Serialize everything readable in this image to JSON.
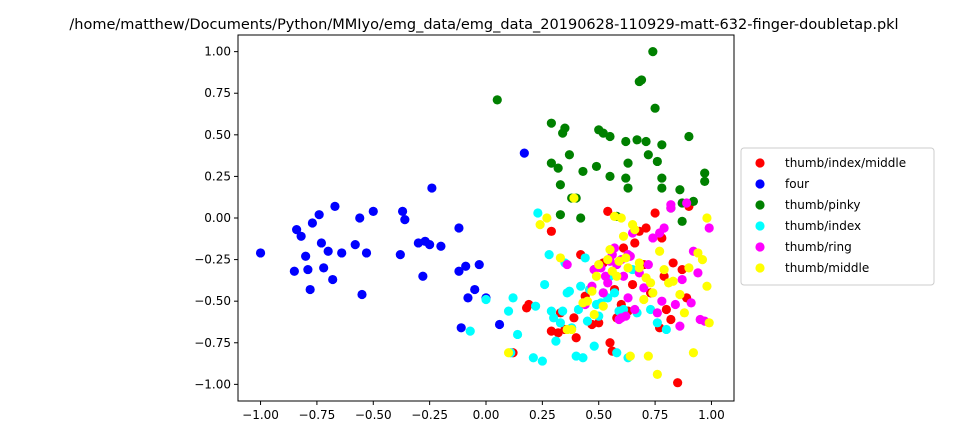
{
  "chart_data": {
    "type": "scatter",
    "title": "/home/matthew/Documents/Python/MMIyo/emg_data/emg_data_20190628-110929-matt-632-finger-doubletap.pkl",
    "xlabel": "",
    "ylabel": "",
    "xlim": [
      -1.1,
      1.1
    ],
    "ylim": [
      -1.1,
      1.1
    ],
    "xticks": [
      -1.0,
      -0.75,
      -0.5,
      -0.25,
      0.0,
      0.25,
      0.5,
      0.75,
      1.0
    ],
    "yticks": [
      -1.0,
      -0.75,
      -0.5,
      -0.25,
      0.0,
      0.25,
      0.5,
      0.75,
      1.0
    ],
    "xtick_labels": [
      "−1.00",
      "−0.75",
      "−0.50",
      "−0.25",
      "0.00",
      "0.25",
      "0.50",
      "0.75",
      "1.00"
    ],
    "ytick_labels": [
      "−1.00",
      "−0.75",
      "−0.50",
      "−0.25",
      "0.00",
      "0.25",
      "0.50",
      "0.75",
      "1.00"
    ],
    "grid": false,
    "legend_position": "outside-right",
    "series": [
      {
        "name": "thumb/index/middle",
        "color": "#ff0000",
        "points": [
          [
            0.12,
            -0.81
          ],
          [
            0.19,
            -0.52
          ],
          [
            0.18,
            -0.54
          ],
          [
            0.29,
            -0.08
          ],
          [
            0.33,
            -0.57
          ],
          [
            0.35,
            -0.67
          ],
          [
            0.29,
            -0.68
          ],
          [
            0.32,
            -0.69
          ],
          [
            0.39,
            -0.6
          ],
          [
            0.4,
            -0.72
          ],
          [
            0.42,
            -0.22
          ],
          [
            0.44,
            -0.47
          ],
          [
            0.46,
            -0.43
          ],
          [
            0.48,
            -0.31
          ],
          [
            0.5,
            -0.63
          ],
          [
            0.52,
            -0.27
          ],
          [
            0.54,
            0.04
          ],
          [
            0.55,
            -0.75
          ],
          [
            0.57,
            -0.43
          ],
          [
            0.58,
            -0.6
          ],
          [
            0.6,
            -0.52
          ],
          [
            0.61,
            -0.18
          ],
          [
            0.63,
            -0.56
          ],
          [
            0.65,
            -0.4
          ],
          [
            0.66,
            -0.15
          ],
          [
            0.68,
            -0.08
          ],
          [
            0.7,
            -0.28
          ],
          [
            0.71,
            -0.06
          ],
          [
            0.73,
            -0.45
          ],
          [
            0.75,
            0.03
          ],
          [
            0.77,
            -0.66
          ],
          [
            0.78,
            -0.12
          ],
          [
            0.79,
            -0.35
          ],
          [
            0.8,
            -0.55
          ],
          [
            0.82,
            -0.61
          ],
          [
            0.83,
            -0.27
          ],
          [
            0.85,
            -0.99
          ],
          [
            0.87,
            -0.31
          ],
          [
            0.89,
            -0.48
          ],
          [
            0.9,
            0.07
          ],
          [
            0.56,
            -0.8
          ],
          [
            0.47,
            -0.64
          ]
        ]
      },
      {
        "name": "four",
        "color": "#0000ff",
        "points": [
          [
            -1.0,
            -0.21
          ],
          [
            -0.85,
            -0.32
          ],
          [
            -0.84,
            -0.07
          ],
          [
            -0.82,
            -0.11
          ],
          [
            -0.8,
            -0.23
          ],
          [
            -0.79,
            -0.31
          ],
          [
            -0.78,
            -0.43
          ],
          [
            -0.77,
            -0.03
          ],
          [
            -0.74,
            0.02
          ],
          [
            -0.73,
            -0.15
          ],
          [
            -0.72,
            -0.3
          ],
          [
            -0.7,
            -0.2
          ],
          [
            -0.68,
            -0.37
          ],
          [
            -0.67,
            0.07
          ],
          [
            -0.64,
            -0.21
          ],
          [
            -0.58,
            -0.16
          ],
          [
            -0.56,
            0.0
          ],
          [
            -0.55,
            -0.46
          ],
          [
            -0.53,
            -0.21
          ],
          [
            -0.5,
            0.04
          ],
          [
            -0.38,
            -0.22
          ],
          [
            -0.37,
            0.04
          ],
          [
            -0.36,
            -0.01
          ],
          [
            -0.3,
            -0.15
          ],
          [
            -0.28,
            -0.35
          ],
          [
            -0.27,
            -0.14
          ],
          [
            -0.25,
            -0.16
          ],
          [
            -0.24,
            0.18
          ],
          [
            -0.12,
            -0.06
          ],
          [
            -0.12,
            -0.32
          ],
          [
            -0.09,
            -0.29
          ],
          [
            -0.08,
            -0.48
          ],
          [
            -0.05,
            -0.43
          ],
          [
            -0.03,
            -0.28
          ],
          [
            0.0,
            -0.48
          ],
          [
            0.06,
            -0.64
          ],
          [
            0.17,
            0.39
          ],
          [
            -0.11,
            -0.66
          ],
          [
            -0.2,
            -0.17
          ]
        ]
      },
      {
        "name": "thumb/pinky",
        "color": "#008000",
        "points": [
          [
            0.05,
            0.71
          ],
          [
            0.29,
            0.57
          ],
          [
            0.29,
            0.33
          ],
          [
            0.32,
            0.3
          ],
          [
            0.33,
            0.2
          ],
          [
            0.33,
            0.02
          ],
          [
            0.34,
            0.51
          ],
          [
            0.35,
            0.54
          ],
          [
            0.37,
            0.38
          ],
          [
            0.38,
            0.12
          ],
          [
            0.4,
            0.12
          ],
          [
            0.43,
            0.28
          ],
          [
            0.42,
            0.0
          ],
          [
            0.49,
            0.31
          ],
          [
            0.5,
            0.53
          ],
          [
            0.52,
            0.51
          ],
          [
            0.55,
            0.25
          ],
          [
            0.55,
            0.49
          ],
          [
            0.58,
            0.01
          ],
          [
            0.62,
            0.24
          ],
          [
            0.62,
            0.46
          ],
          [
            0.63,
            0.33
          ],
          [
            0.63,
            0.18
          ],
          [
            0.67,
            0.47
          ],
          [
            0.68,
            0.82
          ],
          [
            0.69,
            0.83
          ],
          [
            0.71,
            0.46
          ],
          [
            0.72,
            0.38
          ],
          [
            0.74,
            1.0
          ],
          [
            0.75,
            0.66
          ],
          [
            0.76,
            0.34
          ],
          [
            0.78,
            0.44
          ],
          [
            0.78,
            0.24
          ],
          [
            0.78,
            0.18
          ],
          [
            0.82,
            0.06
          ],
          [
            0.86,
            0.17
          ],
          [
            0.87,
            -0.02
          ],
          [
            0.9,
            0.49
          ],
          [
            0.92,
            0.1
          ],
          [
            0.97,
            0.27
          ],
          [
            0.97,
            0.22
          ],
          [
            0.87,
            0.09
          ]
        ]
      },
      {
        "name": "thumb/index",
        "color": "#00ffff",
        "points": [
          [
            -0.07,
            -0.68
          ],
          [
            0.0,
            -0.49
          ],
          [
            0.11,
            -0.81
          ],
          [
            0.12,
            -0.48
          ],
          [
            0.14,
            -0.7
          ],
          [
            0.1,
            -0.56
          ],
          [
            0.21,
            -0.84
          ],
          [
            0.22,
            -0.53
          ],
          [
            0.23,
            0.03
          ],
          [
            0.25,
            -0.86
          ],
          [
            0.26,
            -0.4
          ],
          [
            0.28,
            -0.22
          ],
          [
            0.29,
            -0.56
          ],
          [
            0.31,
            -0.74
          ],
          [
            0.3,
            -0.6
          ],
          [
            0.33,
            -0.63
          ],
          [
            0.34,
            -0.56
          ],
          [
            0.35,
            -0.27
          ],
          [
            0.37,
            -0.44
          ],
          [
            0.38,
            -0.66
          ],
          [
            0.4,
            -0.83
          ],
          [
            0.41,
            -0.55
          ],
          [
            0.42,
            -0.41
          ],
          [
            0.43,
            -0.84
          ],
          [
            0.44,
            -0.24
          ],
          [
            0.45,
            -0.62
          ],
          [
            0.46,
            -0.43
          ],
          [
            0.48,
            -0.77
          ],
          [
            0.49,
            -0.52
          ],
          [
            0.5,
            -0.59
          ],
          [
            0.51,
            -0.51
          ],
          [
            0.52,
            -0.45
          ],
          [
            0.54,
            -0.48
          ],
          [
            0.55,
            -0.35
          ],
          [
            0.57,
            -0.45
          ],
          [
            0.58,
            -0.81
          ],
          [
            0.59,
            -0.56
          ],
          [
            0.61,
            -0.55
          ],
          [
            0.63,
            -0.84
          ],
          [
            0.65,
            -0.31
          ],
          [
            0.67,
            -0.57
          ],
          [
            0.73,
            -0.55
          ],
          [
            0.76,
            -0.63
          ],
          [
            0.8,
            -0.67
          ],
          [
            0.36,
            -0.45
          ]
        ]
      },
      {
        "name": "thumb/ring",
        "color": "#ff00ff",
        "points": [
          [
            0.36,
            -0.28
          ],
          [
            0.44,
            -0.52
          ],
          [
            0.47,
            -0.41
          ],
          [
            0.48,
            -0.31
          ],
          [
            0.51,
            -0.3
          ],
          [
            0.52,
            -0.45
          ],
          [
            0.54,
            -0.39
          ],
          [
            0.55,
            -0.26
          ],
          [
            0.56,
            -0.22
          ],
          [
            0.57,
            -0.18
          ],
          [
            0.58,
            -0.28
          ],
          [
            0.59,
            -0.61
          ],
          [
            0.6,
            -0.25
          ],
          [
            0.61,
            -0.35
          ],
          [
            0.62,
            -0.59
          ],
          [
            0.63,
            -0.48
          ],
          [
            0.64,
            -0.23
          ],
          [
            0.65,
            -0.09
          ],
          [
            0.66,
            -0.55
          ],
          [
            0.68,
            -0.33
          ],
          [
            0.7,
            -0.42
          ],
          [
            0.72,
            -0.28
          ],
          [
            0.74,
            -0.12
          ],
          [
            0.76,
            -0.57
          ],
          [
            0.77,
            -0.09
          ],
          [
            0.78,
            -0.5
          ],
          [
            0.79,
            -0.06
          ],
          [
            0.82,
            0.06
          ],
          [
            0.82,
            0.08
          ],
          [
            0.84,
            -0.52
          ],
          [
            0.86,
            -0.65
          ],
          [
            0.87,
            -0.37
          ],
          [
            0.89,
            0.09
          ],
          [
            0.91,
            -0.51
          ],
          [
            0.92,
            -0.2
          ],
          [
            0.94,
            -0.33
          ],
          [
            0.95,
            -0.61
          ],
          [
            0.97,
            -0.62
          ],
          [
            0.99,
            -0.06
          ],
          [
            0.6,
            -0.6
          ],
          [
            0.63,
            -0.22
          ],
          [
            0.53,
            -0.35
          ]
        ]
      },
      {
        "name": "thumb/middle",
        "color": "#ffff00",
        "points": [
          [
            0.1,
            -0.81
          ],
          [
            0.24,
            -0.04
          ],
          [
            0.27,
            0.0
          ],
          [
            0.33,
            -0.24
          ],
          [
            0.36,
            -0.67
          ],
          [
            0.38,
            -0.67
          ],
          [
            0.39,
            0.12
          ],
          [
            0.43,
            -0.51
          ],
          [
            0.45,
            -0.5
          ],
          [
            0.47,
            -0.44
          ],
          [
            0.48,
            -0.58
          ],
          [
            0.49,
            -0.35
          ],
          [
            0.5,
            -0.28
          ],
          [
            0.52,
            -0.53
          ],
          [
            0.54,
            -0.25
          ],
          [
            0.55,
            -0.19
          ],
          [
            0.56,
            -0.32
          ],
          [
            0.57,
            0.01
          ],
          [
            0.58,
            -0.35
          ],
          [
            0.59,
            -0.26
          ],
          [
            0.6,
            0.0
          ],
          [
            0.61,
            -0.11
          ],
          [
            0.62,
            -0.24
          ],
          [
            0.63,
            -0.3
          ],
          [
            0.64,
            -0.83
          ],
          [
            0.65,
            -0.04
          ],
          [
            0.66,
            -0.07
          ],
          [
            0.68,
            -0.27
          ],
          [
            0.7,
            -0.49
          ],
          [
            0.71,
            -0.36
          ],
          [
            0.72,
            -0.83
          ],
          [
            0.73,
            -0.39
          ],
          [
            0.74,
            -0.45
          ],
          [
            0.76,
            -0.94
          ],
          [
            0.77,
            -0.2
          ],
          [
            0.79,
            -0.31
          ],
          [
            0.81,
            -0.39
          ],
          [
            0.83,
            -0.38
          ],
          [
            0.86,
            -0.46
          ],
          [
            0.88,
            -0.57
          ],
          [
            0.9,
            -0.3
          ],
          [
            0.92,
            -0.81
          ],
          [
            0.94,
            -0.21
          ],
          [
            0.96,
            -0.25
          ],
          [
            0.98,
            -0.41
          ],
          [
            0.98,
            0.0
          ],
          [
            0.99,
            -0.63
          ],
          [
            0.68,
            -0.3
          ]
        ]
      }
    ]
  }
}
